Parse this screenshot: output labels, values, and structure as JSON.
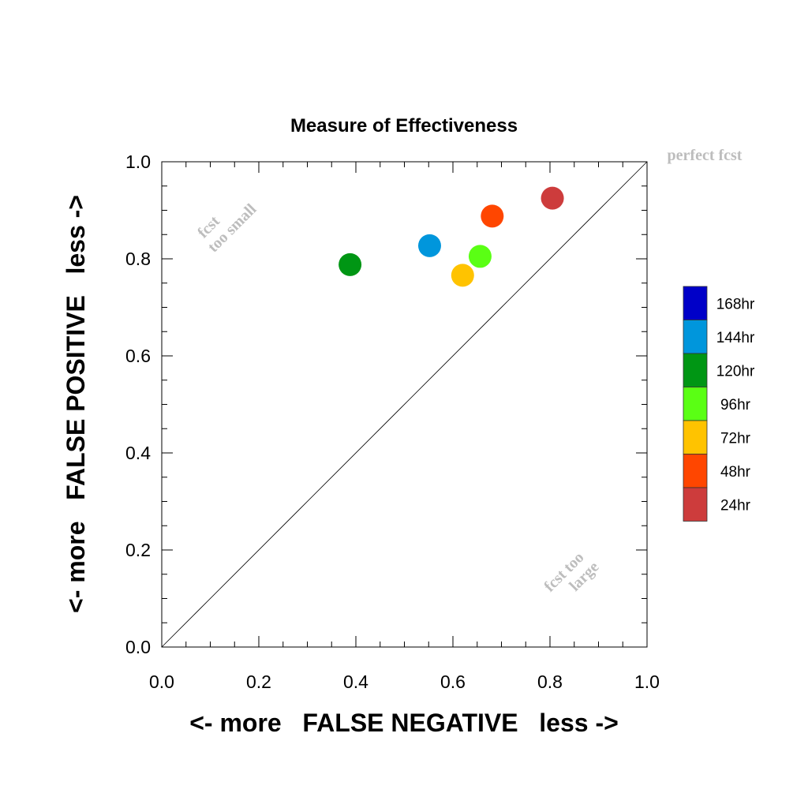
{
  "chart_data": {
    "type": "scatter",
    "title": "Measure of Effectiveness",
    "xlabel": "<- more   FALSE NEGATIVE   less ->",
    "ylabel": "<- more   FALSE POSITIVE   less ->",
    "xlim": [
      0.0,
      1.0
    ],
    "ylim": [
      0.0,
      1.0
    ],
    "x_ticks": [
      "0.0",
      "0.2",
      "0.4",
      "0.6",
      "0.8",
      "1.0"
    ],
    "y_ticks": [
      "0.0",
      "0.2",
      "0.4",
      "0.6",
      "0.8",
      "1.0"
    ],
    "grid": false,
    "diagonal_line": true,
    "annotations": {
      "perfect": "perfect fcst",
      "too_small_1": "fcst",
      "too_small_2": "too small",
      "too_large_1": "fcst too",
      "too_large_2": "large"
    },
    "legend": {
      "placement": "right",
      "entries": [
        {
          "label": "168hr",
          "color": "#0000c8"
        },
        {
          "label": "144hr",
          "color": "#0096dc"
        },
        {
          "label": "120hr",
          "color": "#009614"
        },
        {
          "label": "96hr",
          "color": "#5aff14"
        },
        {
          "label": "72hr",
          "color": "#ffc300"
        },
        {
          "label": "48hr",
          "color": "#ff4600"
        },
        {
          "label": "24hr",
          "color": "#cd3c3c"
        }
      ]
    },
    "points": [
      {
        "lead": "24hr",
        "x": 0.805,
        "y": 0.925,
        "color": "#cd3c3c"
      },
      {
        "lead": "48hr",
        "x": 0.681,
        "y": 0.888,
        "color": "#ff4600"
      },
      {
        "lead": "72hr",
        "x": 0.62,
        "y": 0.766,
        "color": "#ffc300"
      },
      {
        "lead": "96hr",
        "x": 0.656,
        "y": 0.805,
        "color": "#5aff14"
      },
      {
        "lead": "120hr",
        "x": 0.388,
        "y": 0.788,
        "color": "#009614"
      },
      {
        "lead": "144hr",
        "x": 0.552,
        "y": 0.827,
        "color": "#0096dc"
      }
    ]
  }
}
